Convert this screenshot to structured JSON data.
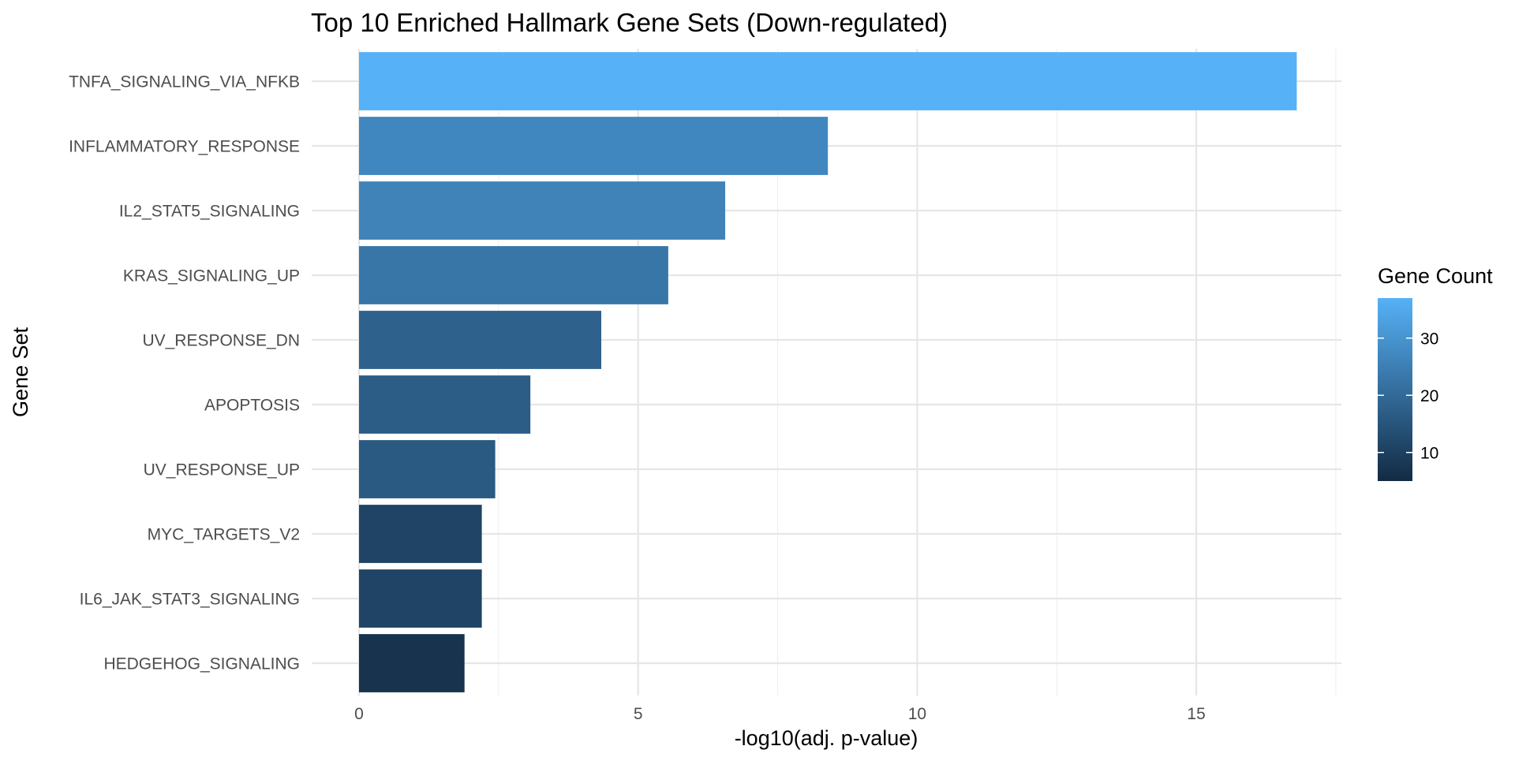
{
  "chart_data": {
    "type": "bar",
    "orientation": "horizontal",
    "title": "Top 10 Enriched Hallmark Gene Sets (Down-regulated)",
    "xlabel": "-log10(adj. p-value)",
    "ylabel": "Gene Set",
    "xlim": [
      0,
      17.6
    ],
    "x_ticks": [
      0,
      5,
      10,
      15
    ],
    "grid": true,
    "categories": [
      "TNFA_SIGNALING_VIA_NFKB",
      "INFLAMMATORY_RESPONSE",
      "IL2_STAT5_SIGNALING",
      "KRAS_SIGNALING_UP",
      "UV_RESPONSE_DN",
      "APOPTOSIS",
      "UV_RESPONSE_UP",
      "MYC_TARGETS_V2",
      "IL6_JAK_STAT3_SIGNALING",
      "HEDGEHOG_SIGNALING"
    ],
    "values": [
      16.8,
      8.4,
      6.56,
      5.54,
      4.34,
      3.07,
      2.44,
      2.2,
      2.2,
      1.89
    ],
    "gene_counts": [
      37,
      27,
      26,
      23,
      18,
      17,
      16,
      11,
      11,
      7
    ],
    "legend": {
      "title": "Gene Count",
      "position": "right",
      "ticks": [
        10,
        20,
        30
      ],
      "range": [
        5,
        37
      ],
      "color_low": "#132b43",
      "color_high": "#56b1f7"
    }
  }
}
